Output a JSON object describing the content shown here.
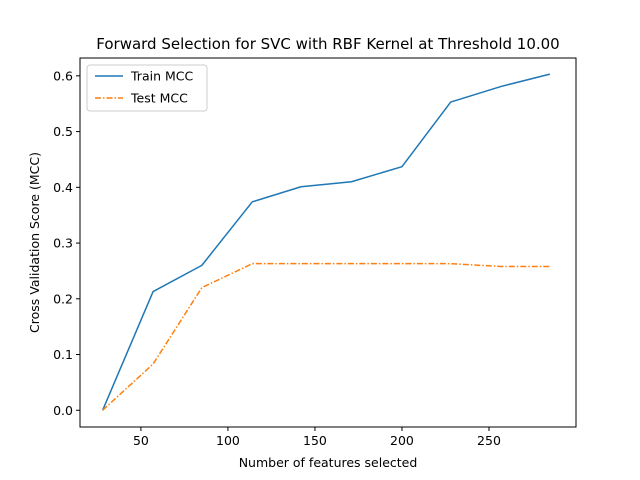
{
  "chart_data": {
    "type": "line",
    "title": "Forward Selection for SVC with RBF Kernel at Threshold 10.00",
    "xlabel": "Number of features selected",
    "ylabel": "Cross Validation Score (MCC)",
    "xlim": [
      15,
      300
    ],
    "ylim": [
      -0.03,
      0.632
    ],
    "xticks": [
      50,
      100,
      150,
      200,
      250
    ],
    "yticks": [
      0.0,
      0.1,
      0.2,
      0.3,
      0.4,
      0.5,
      0.6
    ],
    "ytick_labels": [
      "0.0",
      "0.1",
      "0.2",
      "0.3",
      "0.4",
      "0.5",
      "0.6"
    ],
    "legend_position": "upper-left",
    "x": [
      28,
      57,
      85,
      114,
      142,
      171,
      200,
      228,
      257,
      285
    ],
    "series": [
      {
        "name": "Train MCC",
        "color": "#1f77b4",
        "style": "solid",
        "values": [
          0.0,
          0.213,
          0.26,
          0.374,
          0.401,
          0.41,
          0.437,
          0.553,
          0.581,
          0.603
        ]
      },
      {
        "name": "Test MCC",
        "color": "#ff7f0e",
        "style": "dashdot",
        "values": [
          0.0,
          0.083,
          0.22,
          0.263,
          0.263,
          0.263,
          0.263,
          0.263,
          0.258,
          0.258
        ]
      }
    ]
  }
}
